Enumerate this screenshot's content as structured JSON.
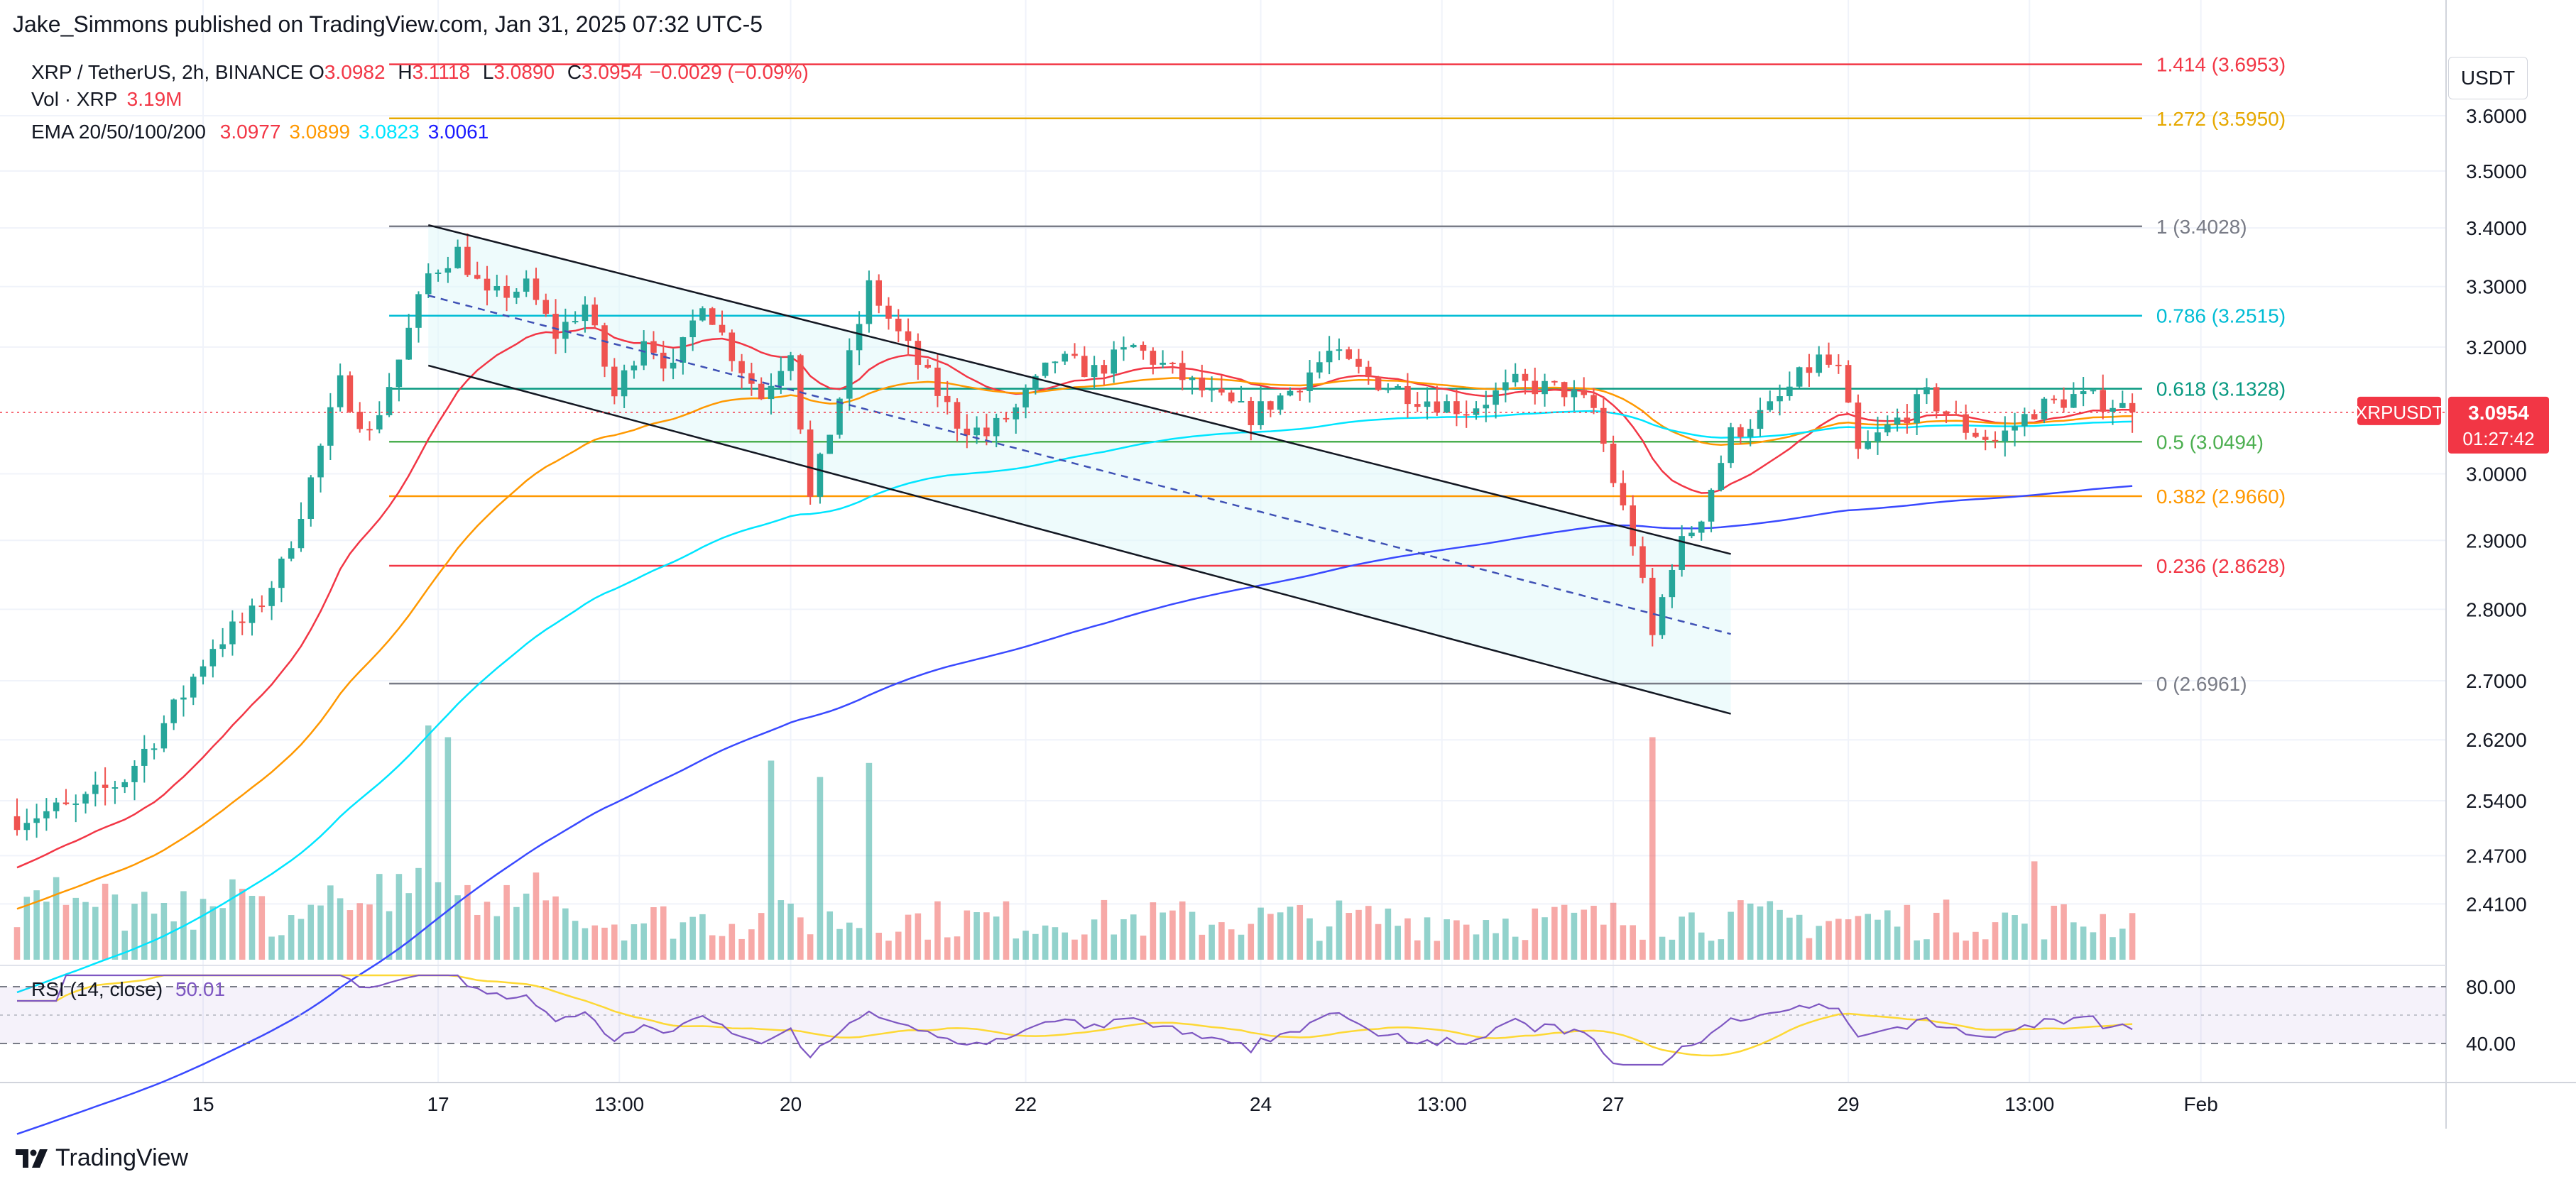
{
  "header": {
    "published_by": "Jake_Simmons published on TradingView.com, Jan 31, 2025 07:32 UTC-5",
    "symbol": "XRP / TetherUS, 2h, BINANCE",
    "ohlc": [
      {
        "k": "O",
        "v": "3.0982"
      },
      {
        "k": "H",
        "v": "3.1118"
      },
      {
        "k": "L",
        "v": "3.0890"
      },
      {
        "k": "C",
        "v": "3.0954"
      },
      {
        "k": "",
        "v": "−0.0029 (−0.09%)"
      }
    ],
    "volume_label": "Vol · XRP",
    "volume_value": "3.19M",
    "ema_label": "EMA 20/50/100/200",
    "ema_values": [
      {
        "v": "3.0977",
        "color": "#f23645"
      },
      {
        "v": "3.0899",
        "color": "#ff9800"
      },
      {
        "v": "3.0823",
        "color": "#00e5ff"
      },
      {
        "v": "3.0061",
        "color": "#1a1aff"
      }
    ],
    "rsi_label": "RSI (14, close)",
    "rsi_value": "50.01",
    "currency_button": "USDT"
  },
  "branding": {
    "logo_text": "TradingView"
  },
  "colors": {
    "up": "#26a69a",
    "down": "#ef5350",
    "ema20": "#f23645",
    "ema50": "#ff9800",
    "ema100": "#00e5ff",
    "ema200": "#3949ff",
    "rsi": "#7e57c2",
    "rsi_ma": "#fdd835",
    "channel_fill": "#e0f7fa"
  },
  "chart_data": {
    "type": "candlestick",
    "symbol": "XRPUSDT",
    "interval": "2h",
    "y_axis": {
      "min": 2.34,
      "max": 3.75,
      "log": true,
      "ticks": [
        3.6,
        3.5,
        3.4,
        3.3,
        3.2,
        3.0,
        2.9,
        2.8,
        2.7,
        2.62,
        2.54,
        2.47,
        2.41
      ],
      "tick_labels": [
        "3.6000",
        "3.5000",
        "3.4000",
        "3.3000",
        "3.2000",
        "3.0000",
        "2.9000",
        "2.8000",
        "2.7000",
        "2.6200",
        "2.5400",
        "2.4700",
        "2.4100"
      ]
    },
    "x_axis": {
      "start_date": "2025-01-13T10:00",
      "end_date": "2025-02-01T16:00",
      "ticks": [
        {
          "label": "15",
          "t": "2025-01-15T00:00"
        },
        {
          "label": "17",
          "t": "2025-01-17T00:00"
        },
        {
          "label": "13:00",
          "t": "2025-01-18T13:00"
        },
        {
          "label": "20",
          "t": "2025-01-20T00:00"
        },
        {
          "label": "22",
          "t": "2025-01-22T00:00"
        },
        {
          "label": "24",
          "t": "2025-01-24T00:00"
        },
        {
          "label": "13:00",
          "t": "2025-01-25T13:00"
        },
        {
          "label": "27",
          "t": "2025-01-27T00:00"
        },
        {
          "label": "29",
          "t": "2025-01-29T00:00"
        },
        {
          "label": "13:00",
          "t": "2025-01-30T13:00"
        },
        {
          "label": "Feb",
          "t": "2025-02-01T00:00"
        }
      ]
    },
    "price_anchors": [
      [
        "2025-01-13T10:00",
        2.52
      ],
      [
        "2025-01-13T22:00",
        2.53
      ],
      [
        "2025-01-14T08:00",
        2.57
      ],
      [
        "2025-01-14T18:00",
        2.66
      ],
      [
        "2025-01-15T02:00",
        2.75
      ],
      [
        "2025-01-15T10:00",
        2.79
      ],
      [
        "2025-01-15T16:00",
        2.86
      ],
      [
        "2025-01-15T22:00",
        2.99
      ],
      [
        "2025-01-16T04:00",
        3.14
      ],
      [
        "2025-01-16T10:00",
        3.06
      ],
      [
        "2025-01-16T16:00",
        3.18
      ],
      [
        "2025-01-16T22:00",
        3.32
      ],
      [
        "2025-01-17T04:00",
        3.36
      ],
      [
        "2025-01-17T10:00",
        3.28
      ],
      [
        "2025-01-17T18:00",
        3.3
      ],
      [
        "2025-01-18T00:00",
        3.22
      ],
      [
        "2025-01-18T06:00",
        3.27
      ],
      [
        "2025-01-18T12:00",
        3.12
      ],
      [
        "2025-01-18T18:00",
        3.22
      ],
      [
        "2025-01-19T00:00",
        3.16
      ],
      [
        "2025-01-19T06:00",
        3.28
      ],
      [
        "2025-01-19T12:00",
        3.19
      ],
      [
        "2025-01-19T18:00",
        3.12
      ],
      [
        "2025-01-20T00:00",
        3.2
      ],
      [
        "2025-01-20T04:00",
        2.96
      ],
      [
        "2025-01-20T10:00",
        3.12
      ],
      [
        "2025-01-20T16:00",
        3.3
      ],
      [
        "2025-01-20T22:00",
        3.22
      ],
      [
        "2025-01-21T04:00",
        3.15
      ],
      [
        "2025-01-21T10:00",
        3.08
      ],
      [
        "2025-01-21T16:00",
        3.06
      ],
      [
        "2025-01-21T22:00",
        3.1
      ],
      [
        "2025-01-22T06:00",
        3.18
      ],
      [
        "2025-01-22T14:00",
        3.16
      ],
      [
        "2025-01-22T22:00",
        3.2
      ],
      [
        "2025-01-23T06:00",
        3.16
      ],
      [
        "2025-01-23T14:00",
        3.12
      ],
      [
        "2025-01-23T22:00",
        3.09
      ],
      [
        "2025-01-24T06:00",
        3.13
      ],
      [
        "2025-01-24T14:00",
        3.19
      ],
      [
        "2025-01-24T22:00",
        3.15
      ],
      [
        "2025-01-25T08:00",
        3.12
      ],
      [
        "2025-01-25T18:00",
        3.1
      ],
      [
        "2025-01-26T04:00",
        3.14
      ],
      [
        "2025-01-26T14:00",
        3.13
      ],
      [
        "2025-01-26T20:00",
        3.1
      ],
      [
        "2025-01-27T00:00",
        2.99
      ],
      [
        "2025-01-27T04:00",
        2.9
      ],
      [
        "2025-01-27T08:00",
        2.76
      ],
      [
        "2025-01-27T12:00",
        2.87
      ],
      [
        "2025-01-27T18:00",
        2.94
      ],
      [
        "2025-01-28T00:00",
        3.06
      ],
      [
        "2025-01-28T08:00",
        3.1
      ],
      [
        "2025-01-28T14:00",
        3.15
      ],
      [
        "2025-01-28T18:00",
        3.18
      ],
      [
        "2025-01-28T22:00",
        3.16
      ],
      [
        "2025-01-29T02:00",
        3.03
      ],
      [
        "2025-01-29T08:00",
        3.07
      ],
      [
        "2025-01-29T16:00",
        3.12
      ],
      [
        "2025-01-30T00:00",
        3.07
      ],
      [
        "2025-01-30T06:00",
        3.05
      ],
      [
        "2025-01-30T14:00",
        3.1
      ],
      [
        "2025-01-30T22:00",
        3.12
      ],
      [
        "2025-01-31T06:00",
        3.11
      ],
      [
        "2025-01-31T10:00",
        3.0954
      ]
    ],
    "volume_spikes": [
      [
        "2025-01-16T22:00",
        1.0
      ],
      [
        "2025-01-17T02:00",
        0.95
      ],
      [
        "2025-01-19T20:00",
        0.85
      ],
      [
        "2025-01-20T06:00",
        0.78
      ],
      [
        "2025-01-20T16:00",
        0.84
      ],
      [
        "2025-01-27T08:00",
        0.95
      ],
      [
        "2025-01-30T14:00",
        0.42
      ]
    ],
    "fibonacci": {
      "levels": [
        {
          "ratio": "1.414",
          "price": 3.6953,
          "label": "1.414 (3.6953)",
          "color": "#f23645"
        },
        {
          "ratio": "1.272",
          "price": 3.595,
          "label": "1.272 (3.5950)",
          "color": "#e6a800"
        },
        {
          "ratio": "1",
          "price": 3.4028,
          "label": "1 (3.4028)",
          "color": "#787b86"
        },
        {
          "ratio": "0.786",
          "price": 3.2515,
          "label": "0.786 (3.2515)",
          "color": "#00bcd4"
        },
        {
          "ratio": "0.618",
          "price": 3.1328,
          "label": "0.618 (3.1328)",
          "color": "#089981"
        },
        {
          "ratio": "0.5",
          "price": 3.0494,
          "label": "0.5 (3.0494)",
          "color": "#4caf50"
        },
        {
          "ratio": "0.382",
          "price": 2.966,
          "label": "0.382 (2.9660)",
          "color": "#ff9800"
        },
        {
          "ratio": "0.236",
          "price": 2.8628,
          "label": "0.236 (2.8628)",
          "color": "#f23645"
        },
        {
          "ratio": "0",
          "price": 2.6961,
          "label": "0 (2.6961)",
          "color": "#787b86"
        }
      ],
      "start": "2025-01-16T14:00",
      "end": "2025-01-31T12:00"
    },
    "channel": {
      "upper": [
        [
          "2025-01-16T22:00",
          3.405
        ],
        [
          "2025-01-28T00:00",
          2.88
        ]
      ],
      "lower": [
        [
          "2025-01-16T22:00",
          3.17
        ],
        [
          "2025-01-28T00:00",
          2.655
        ]
      ],
      "mid": [
        [
          "2025-01-16T22:00",
          3.285
        ],
        [
          "2025-01-28T00:00",
          2.765
        ]
      ]
    },
    "current_price": {
      "symbol": "XRPUSDT",
      "price": "3.0954",
      "countdown": "01:27:42"
    },
    "rsi": {
      "levels": [
        80,
        40
      ],
      "tick_labels": [
        "80.00",
        "40.00"
      ],
      "value": 50.01
    }
  }
}
